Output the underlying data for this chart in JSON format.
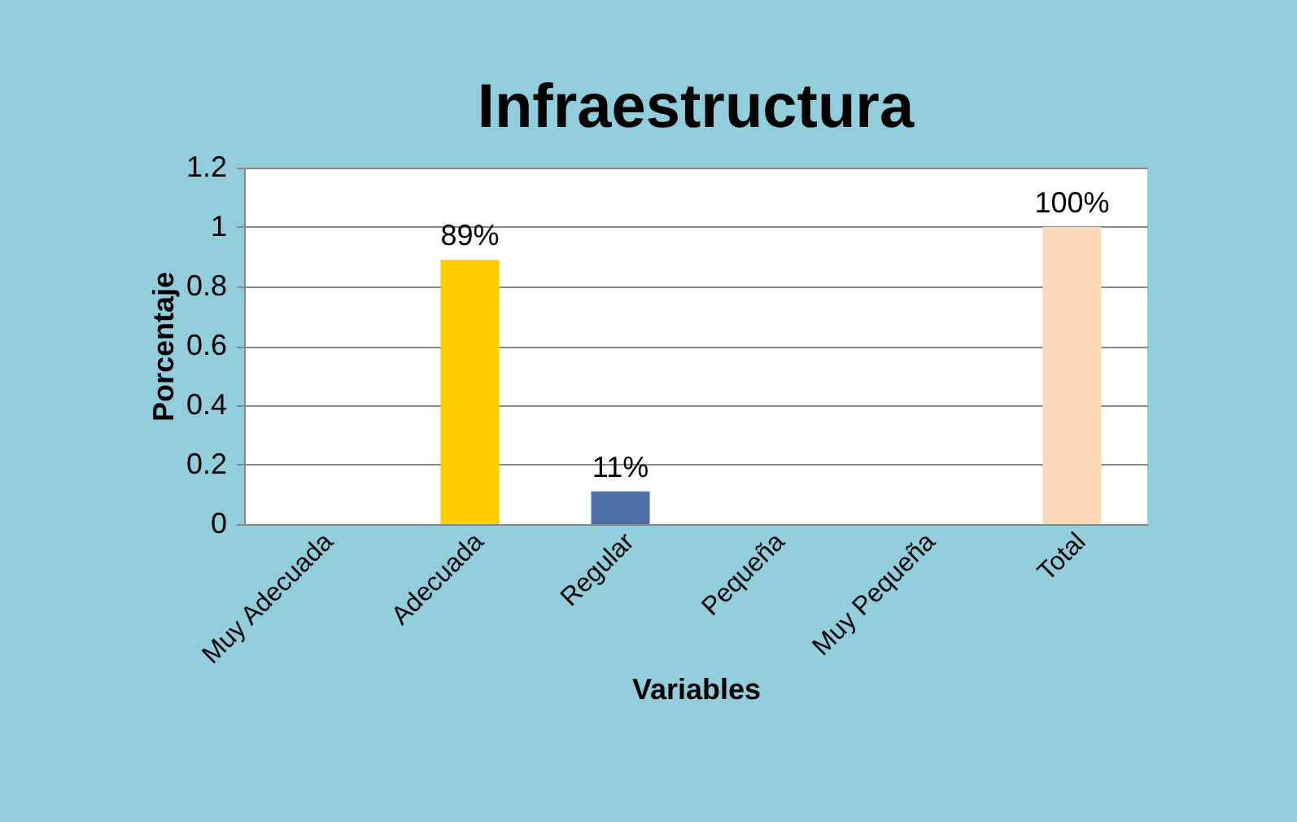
{
  "chart_data": {
    "type": "bar",
    "title": "Infraestructura",
    "xlabel": "Variables",
    "ylabel": "Porcentaje",
    "categories": [
      "Muy Adecuada",
      "Adecuada",
      "Regular",
      "Pequeña",
      "Muy Pequeña",
      "Total"
    ],
    "values": [
      0,
      0.89,
      0.11,
      0,
      0,
      1
    ],
    "colors": [
      "#ffcc00",
      "#ffcc00",
      "#4f6fa8",
      "#4f6fa8",
      "#4f6fa8",
      "#fbd9b8"
    ],
    "value_labels": [
      null,
      "89%",
      "11%",
      null,
      null,
      "100%"
    ],
    "ylim": [
      0,
      1.2
    ],
    "yticks": [
      0,
      0.2,
      0.4,
      0.6,
      0.8,
      1,
      1.2
    ],
    "grid": "y",
    "legend": false
  }
}
